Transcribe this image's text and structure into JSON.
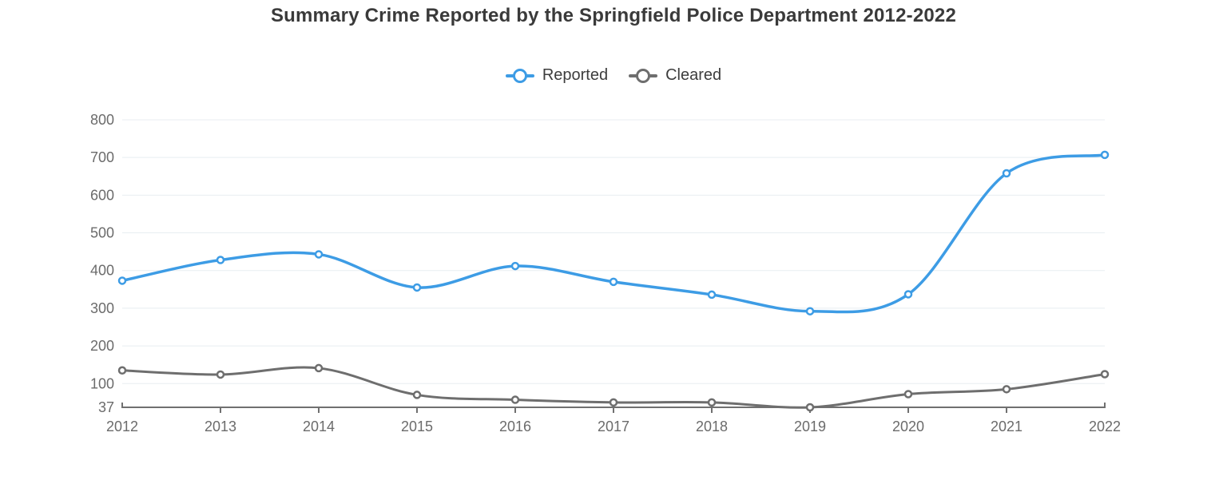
{
  "chart_data": {
    "type": "line",
    "title": "Summary Crime Reported by the Springfield Police Department 2012-2022",
    "x": [
      "2012",
      "2013",
      "2014",
      "2015",
      "2016",
      "2017",
      "2018",
      "2019",
      "2020",
      "2021",
      "2022"
    ],
    "series": [
      {
        "name": "Reported",
        "color": "#3d9ce5",
        "line_width": 3.5,
        "values": [
          373,
          428,
          443,
          355,
          412,
          370,
          336,
          292,
          337,
          658,
          707
        ]
      },
      {
        "name": "Cleared",
        "color": "#6e6e6e",
        "line_width": 3,
        "values": [
          135,
          124,
          141,
          70,
          57,
          50,
          50,
          37,
          72,
          85,
          125
        ]
      }
    ],
    "ylim": [
      37,
      800
    ],
    "yticks": [
      37,
      100,
      200,
      300,
      400,
      500,
      600,
      700,
      800
    ],
    "xlabel": "",
    "ylabel": "",
    "grid": "horizontal",
    "legend_position": "top",
    "marker_style": "open-circle",
    "curve": "smooth"
  },
  "style": {
    "grid_color": "#e8edf1",
    "axis_color": "#707070",
    "tick_label_color": "#6b6b6b",
    "marker_fill": "#ffffff",
    "background": "#ffffff"
  }
}
